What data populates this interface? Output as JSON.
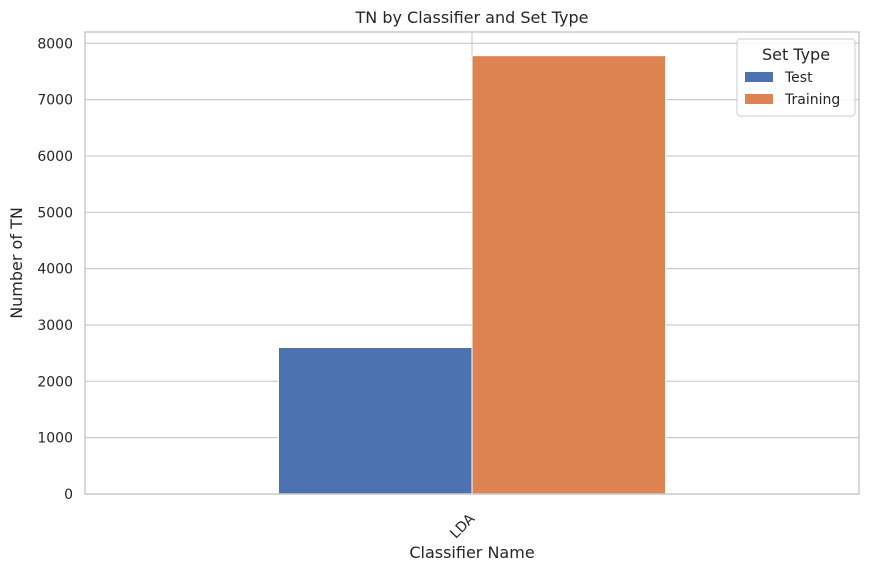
{
  "chart_data": {
    "type": "bar",
    "title": "TN by Classifier and Set Type",
    "xlabel": "Classifier Name",
    "ylabel": "Number of TN",
    "categories": [
      "LDA"
    ],
    "series": [
      {
        "name": "Test",
        "values": [
          2600
        ],
        "color": "#4c72b0"
      },
      {
        "name": "Training",
        "values": [
          7780
        ],
        "color": "#dd8452"
      }
    ],
    "ylim": [
      0,
      8200
    ],
    "yticks": [
      0,
      1000,
      2000,
      3000,
      4000,
      5000,
      6000,
      7000,
      8000
    ],
    "ytick_labels": [
      "0",
      "1000",
      "2000",
      "3000",
      "4000",
      "5000",
      "6000",
      "7000",
      "8000"
    ],
    "grid": true,
    "legend": {
      "title": "Set Type",
      "placement": "top-right"
    },
    "xtick_rotation": 45
  }
}
